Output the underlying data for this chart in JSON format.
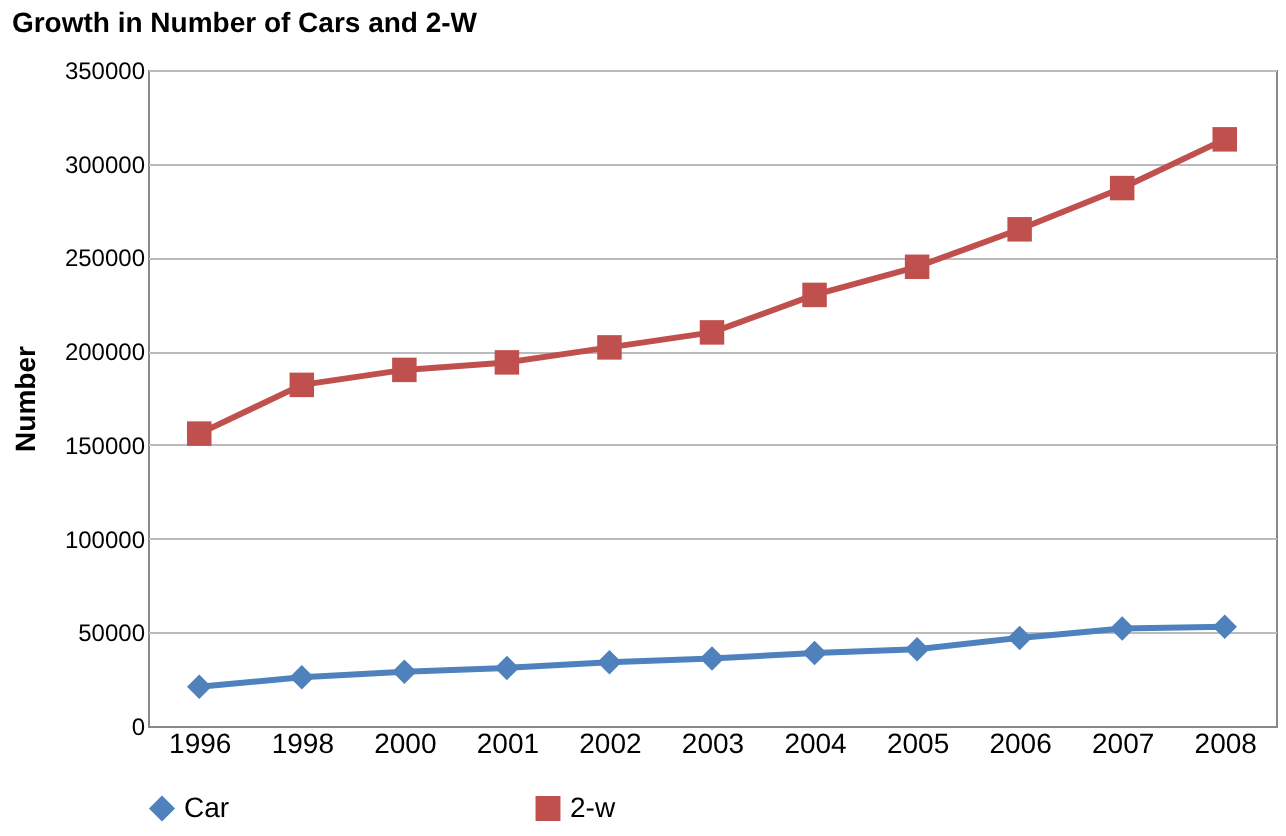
{
  "chart_data": {
    "type": "line",
    "title": "Growth in Number of Cars and 2-W",
    "ylabel": "Number",
    "categories": [
      "1996",
      "1998",
      "2000",
      "2001",
      "2002",
      "2003",
      "2004",
      "2005",
      "2006",
      "2007",
      "2008"
    ],
    "series": [
      {
        "name": "Car",
        "color": "#4f81bd",
        "marker": "diamond",
        "values": [
          21000,
          26000,
          29000,
          31000,
          34000,
          36000,
          39000,
          41000,
          47000,
          52000,
          53000
        ]
      },
      {
        "name": "2-w",
        "color": "#c0504d",
        "marker": "square",
        "values": [
          156000,
          182000,
          190000,
          194000,
          202000,
          210000,
          230000,
          245000,
          265000,
          287000,
          313000
        ]
      }
    ],
    "ylim": [
      0,
      350000
    ],
    "yticks": [
      0,
      50000,
      100000,
      150000,
      200000,
      250000,
      300000,
      350000
    ],
    "grid": "y",
    "legend": "bottom",
    "line_style": "solid"
  }
}
